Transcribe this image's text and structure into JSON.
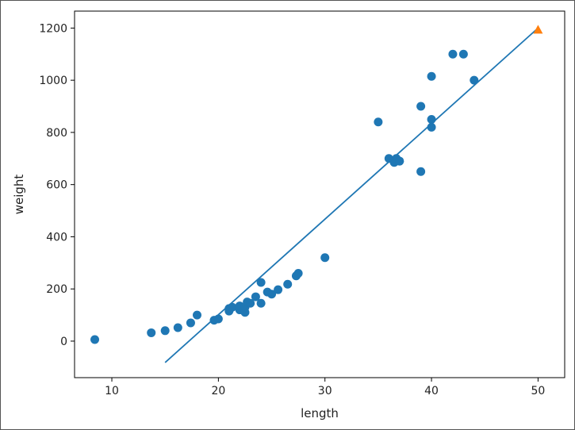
{
  "chart_data": {
    "type": "scatter",
    "title": "",
    "xlabel": "length",
    "ylabel": "weight",
    "xlim": [
      6.5,
      52.5
    ],
    "ylim": [
      -140,
      1265
    ],
    "x_ticks": [
      10,
      20,
      30,
      40,
      50
    ],
    "y_ticks": [
      0,
      200,
      400,
      600,
      800,
      1000,
      1200
    ],
    "grid": false,
    "legend": "none",
    "colors": {
      "points": "#1f77b4",
      "line": "#1f77b4",
      "prediction": "#ff7f0e"
    },
    "series": [
      {
        "type": "scatter",
        "marker": "circle",
        "color": "#1f77b4",
        "x": [
          8.4,
          13.7,
          15.0,
          16.2,
          17.4,
          18.0,
          19.6,
          20.0,
          21.0,
          21.0,
          21.3,
          22.0,
          22.0,
          22.0,
          22.0,
          22.5,
          22.5,
          22.7,
          23.0,
          23.5,
          24.0,
          24.0,
          24.6,
          25.0,
          25.6,
          26.5,
          27.3,
          27.5,
          30.0,
          35.0,
          36.0,
          36.5,
          36.7,
          37.0,
          37.0,
          39.0,
          39.0,
          40.0,
          40.0,
          40.0,
          42.0,
          43.0,
          44.0
        ],
        "y": [
          5.9,
          32.0,
          40.0,
          51.5,
          70.0,
          100.0,
          80.0,
          85.0,
          115.0,
          125.0,
          130.0,
          120.0,
          120.0,
          130.0,
          135.0,
          110.0,
          130.0,
          150.0,
          145.0,
          170.0,
          225.0,
          145.0,
          188.0,
          180.0,
          197.0,
          218.0,
          250.0,
          260.0,
          320.0,
          840.0,
          700.0,
          685.0,
          700.0,
          690.0,
          690.0,
          900.0,
          650.0,
          820.0,
          850.0,
          1015.0,
          1100.0,
          1100.0,
          1000.0
        ]
      },
      {
        "type": "line",
        "color": "#1f77b4",
        "x": [
          15,
          50
        ],
        "y": [
          -82,
          1200
        ]
      },
      {
        "type": "scatter",
        "marker": "triangle",
        "color": "#ff7f0e",
        "x": [
          50
        ],
        "y": [
          1194
        ]
      }
    ]
  }
}
